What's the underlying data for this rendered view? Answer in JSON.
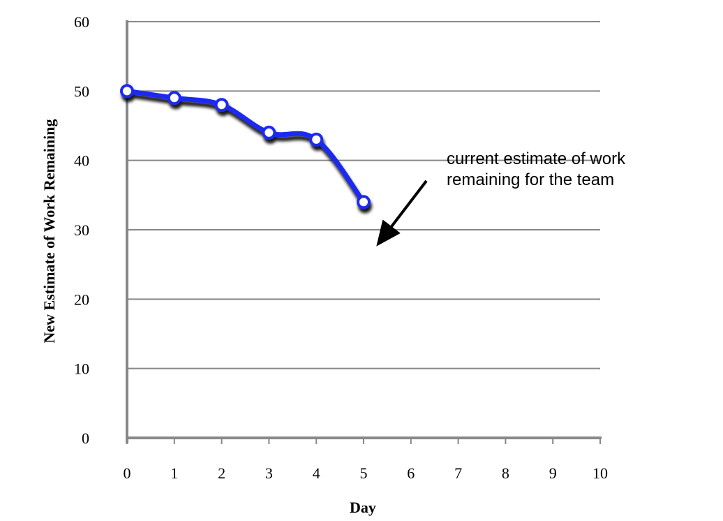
{
  "chart_data": {
    "type": "line",
    "title": "",
    "xlabel": "Day",
    "ylabel": "New Estimate of  Work Remaining",
    "xlim": [
      0,
      10
    ],
    "ylim": [
      0,
      60
    ],
    "x_ticks": [
      "0",
      "1",
      "2",
      "3",
      "4",
      "5",
      "6",
      "7",
      "8",
      "9",
      "10"
    ],
    "y_ticks": [
      "0",
      "10",
      "20",
      "30",
      "40",
      "50",
      "60"
    ],
    "grid": "horizontal",
    "series": [
      {
        "x": [
          0,
          1,
          2,
          3,
          4,
          5
        ],
        "y": [
          50,
          49,
          48,
          44,
          43,
          34
        ],
        "color": "#1e2bf0",
        "smooth": true,
        "markers": "open-circle"
      }
    ],
    "annotation": {
      "lines": [
        "current estimate of work",
        "remaining for the team"
      ],
      "arrow": true
    }
  },
  "colors": {
    "line": "#1e2bf0",
    "marker_fill": "#ffffff",
    "axis": "#888888",
    "grid": "#888888",
    "arrow": "#000000"
  }
}
